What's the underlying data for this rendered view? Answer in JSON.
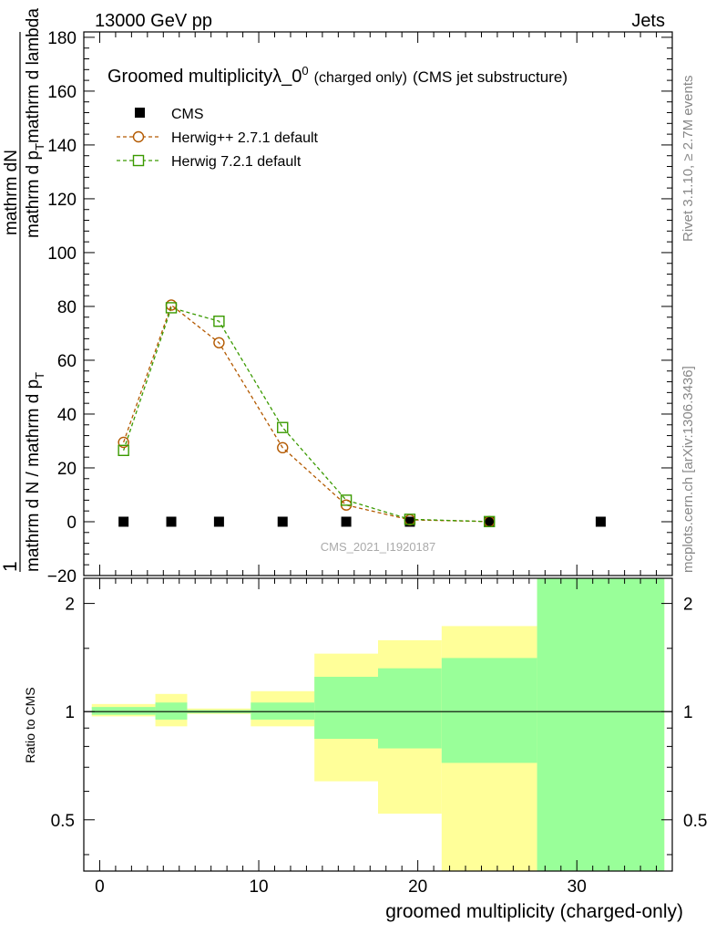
{
  "header": {
    "left": "13000 GeV pp",
    "right": "Jets"
  },
  "side_labels": {
    "rivet": "Rivet 3.1.10, ≥ 2.7M events",
    "mcplots": "mcplots.cern.ch [arXiv:1306.3436]"
  },
  "watermark": "CMS_2021_I1920187",
  "chart_data": [
    {
      "type": "line",
      "panel": "main",
      "title_main": "Groomed multiplicity",
      "title_lambda": "λ_0",
      "title_sup": "0",
      "title_small": "(charged only)",
      "title_rest": "(CMS jet substructure)",
      "xlabel": "groomed multiplicity (charged-only)",
      "ylabel_num": "1",
      "ylabel_mid": "mathrm dN",
      "ylabel_den": "mathrm d N / mathrm d p",
      "ylabel_den_sub": "T",
      "ylabel_den2": "mathrm d p",
      "ylabel_den2_sub": "T",
      "ylabel_den3": "mathrm d lambda",
      "ylabel_top": "mathrm d p",
      "xlim": [
        -1,
        36
      ],
      "ylim": [
        -20,
        182
      ],
      "yticks": [
        -20,
        0,
        20,
        40,
        60,
        80,
        100,
        120,
        140,
        160,
        180
      ],
      "series": [
        {
          "name": "CMS",
          "color": "#000000",
          "marker": "square-filled",
          "x": [
            1.5,
            4.5,
            7.5,
            11.5,
            15.5,
            19.5,
            24.5,
            31.5
          ],
          "values": [
            0,
            0,
            0,
            0,
            0,
            0,
            0,
            0
          ]
        },
        {
          "name": "Herwig++ 2.7.1 default",
          "color": "#b35900",
          "marker": "circle-open",
          "x": [
            1.5,
            4.5,
            7.5,
            11.5,
            15.5,
            19.5,
            24.5
          ],
          "values": [
            29.5,
            80.5,
            66.5,
            27.5,
            6.2,
            0.7,
            0.05
          ]
        },
        {
          "name": "Herwig 7.2.1 default",
          "color": "#3a9a00",
          "marker": "square-open",
          "x": [
            1.5,
            4.5,
            7.5,
            11.5,
            15.5,
            19.5,
            24.5
          ],
          "values": [
            26.5,
            79.5,
            74.5,
            35.0,
            8.0,
            0.9,
            0.05
          ]
        }
      ]
    },
    {
      "type": "area",
      "panel": "ratio",
      "ylabel": "Ratio to CMS",
      "xlim": [
        -1,
        36
      ],
      "ylim": [
        0.36,
        2.35
      ],
      "yticks": [
        0.5,
        1,
        2
      ],
      "ytick_labels": [
        "0.5",
        "1",
        "2"
      ],
      "xticks": [
        0,
        10,
        20,
        30
      ],
      "xtick_labels": [
        "0",
        "10",
        "20",
        "30"
      ],
      "bins": [
        {
          "lo": -0.5,
          "hi": 3.5,
          "inner": [
            0.98,
            1.03
          ],
          "outer": [
            0.97,
            1.05
          ]
        },
        {
          "lo": 3.5,
          "hi": 5.5,
          "inner": [
            0.95,
            1.06
          ],
          "outer": [
            0.91,
            1.12
          ]
        },
        {
          "lo": 5.5,
          "hi": 9.5,
          "inner": [
            0.99,
            1.01
          ],
          "outer": [
            0.985,
            1.02
          ]
        },
        {
          "lo": 9.5,
          "hi": 13.5,
          "inner": [
            0.95,
            1.06
          ],
          "outer": [
            0.91,
            1.14
          ]
        },
        {
          "lo": 13.5,
          "hi": 17.5,
          "inner": [
            0.84,
            1.25
          ],
          "outer": [
            0.64,
            1.45
          ]
        },
        {
          "lo": 17.5,
          "hi": 21.5,
          "inner": [
            0.79,
            1.32
          ],
          "outer": [
            0.52,
            1.58
          ]
        },
        {
          "lo": 21.5,
          "hi": 27.5,
          "inner": [
            0.72,
            1.41
          ],
          "outer": [
            0.36,
            1.73
          ]
        },
        {
          "lo": 27.5,
          "hi": 35.5,
          "inner": [
            0.36,
            2.35
          ],
          "outer": [
            0.36,
            2.35
          ]
        }
      ],
      "inner_color": "#99ff99",
      "outer_color": "#ffff99"
    }
  ]
}
